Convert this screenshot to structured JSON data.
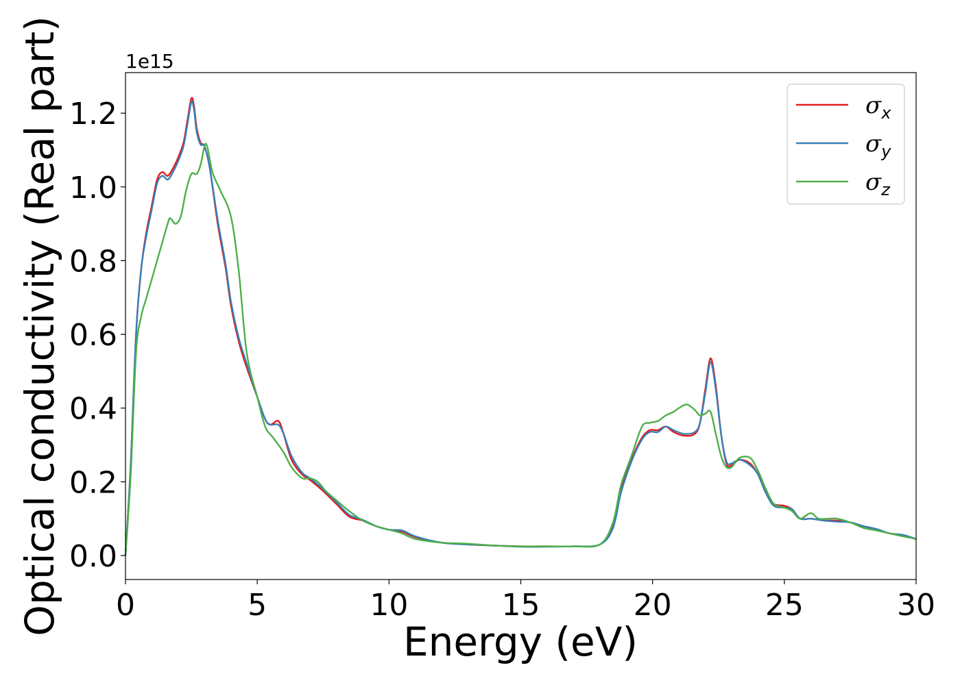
{
  "chart_data": {
    "type": "line",
    "xlabel": "Energy (eV)",
    "ylabel": "Optical conductivity (Real part)",
    "y_offset_label": "1e15",
    "xlim": [
      0,
      30
    ],
    "ylim": [
      -0.065,
      1.31
    ],
    "x_ticks": [
      0,
      5,
      10,
      15,
      20,
      25,
      30
    ],
    "x_tick_labels": [
      "0",
      "5",
      "10",
      "15",
      "20",
      "25",
      "30"
    ],
    "y_ticks": [
      0.0,
      0.2,
      0.4,
      0.6,
      0.8,
      1.0,
      1.2
    ],
    "y_tick_labels": [
      "0.0",
      "0.2",
      "0.4",
      "0.6",
      "0.8",
      "1.0",
      "1.2"
    ],
    "grid": false,
    "legend_position": "top-right",
    "series": [
      {
        "name": "σx",
        "legend_symbol": "σ",
        "legend_subscript": "x",
        "color": "#e41a1c",
        "points": [
          [
            0,
            0
          ],
          [
            0.2,
            0.25
          ],
          [
            0.4,
            0.6
          ],
          [
            0.6,
            0.78
          ],
          [
            0.8,
            0.88
          ],
          [
            1.0,
            0.95
          ],
          [
            1.2,
            1.02
          ],
          [
            1.4,
            1.04
          ],
          [
            1.6,
            1.03
          ],
          [
            1.8,
            1.05
          ],
          [
            2.0,
            1.08
          ],
          [
            2.2,
            1.12
          ],
          [
            2.35,
            1.18
          ],
          [
            2.5,
            1.24
          ],
          [
            2.6,
            1.22
          ],
          [
            2.7,
            1.16
          ],
          [
            2.85,
            1.12
          ],
          [
            3.0,
            1.11
          ],
          [
            3.2,
            1.05
          ],
          [
            3.5,
            0.9
          ],
          [
            3.8,
            0.78
          ],
          [
            4.0,
            0.68
          ],
          [
            4.3,
            0.58
          ],
          [
            4.6,
            0.51
          ],
          [
            5.0,
            0.43
          ],
          [
            5.3,
            0.37
          ],
          [
            5.5,
            0.355
          ],
          [
            5.8,
            0.365
          ],
          [
            6.0,
            0.33
          ],
          [
            6.3,
            0.26
          ],
          [
            6.7,
            0.22
          ],
          [
            7.0,
            0.205
          ],
          [
            7.5,
            0.175
          ],
          [
            8.0,
            0.14
          ],
          [
            8.5,
            0.105
          ],
          [
            9.0,
            0.095
          ],
          [
            9.5,
            0.08
          ],
          [
            10.0,
            0.07
          ],
          [
            10.5,
            0.065
          ],
          [
            11.0,
            0.05
          ],
          [
            12.0,
            0.035
          ],
          [
            13.0,
            0.03
          ],
          [
            14.0,
            0.027
          ],
          [
            15.0,
            0.025
          ],
          [
            16.0,
            0.025
          ],
          [
            17.0,
            0.025
          ],
          [
            18.0,
            0.03
          ],
          [
            18.5,
            0.08
          ],
          [
            18.8,
            0.18
          ],
          [
            19.2,
            0.26
          ],
          [
            19.6,
            0.32
          ],
          [
            19.9,
            0.34
          ],
          [
            20.2,
            0.34
          ],
          [
            20.5,
            0.35
          ],
          [
            20.8,
            0.335
          ],
          [
            21.2,
            0.325
          ],
          [
            21.6,
            0.33
          ],
          [
            21.8,
            0.36
          ],
          [
            22.0,
            0.45
          ],
          [
            22.2,
            0.535
          ],
          [
            22.4,
            0.46
          ],
          [
            22.6,
            0.33
          ],
          [
            22.8,
            0.25
          ],
          [
            23.0,
            0.245
          ],
          [
            23.3,
            0.26
          ],
          [
            23.7,
            0.25
          ],
          [
            24.0,
            0.22
          ],
          [
            24.3,
            0.17
          ],
          [
            24.6,
            0.14
          ],
          [
            25.0,
            0.135
          ],
          [
            25.3,
            0.125
          ],
          [
            25.6,
            0.1
          ],
          [
            26.0,
            0.1
          ],
          [
            26.5,
            0.095
          ],
          [
            27.0,
            0.095
          ],
          [
            27.5,
            0.09
          ],
          [
            28.0,
            0.08
          ],
          [
            28.5,
            0.07
          ],
          [
            29.0,
            0.06
          ],
          [
            29.5,
            0.055
          ],
          [
            30.0,
            0.045
          ]
        ]
      },
      {
        "name": "σy",
        "legend_symbol": "σ",
        "legend_subscript": "y",
        "color": "#377eb8",
        "points": [
          [
            0,
            0
          ],
          [
            0.2,
            0.25
          ],
          [
            0.4,
            0.6
          ],
          [
            0.6,
            0.78
          ],
          [
            0.8,
            0.87
          ],
          [
            1.0,
            0.94
          ],
          [
            1.2,
            1.01
          ],
          [
            1.4,
            1.03
          ],
          [
            1.6,
            1.02
          ],
          [
            1.8,
            1.04
          ],
          [
            2.0,
            1.07
          ],
          [
            2.2,
            1.11
          ],
          [
            2.35,
            1.17
          ],
          [
            2.5,
            1.23
          ],
          [
            2.6,
            1.21
          ],
          [
            2.7,
            1.15
          ],
          [
            2.85,
            1.115
          ],
          [
            3.0,
            1.11
          ],
          [
            3.2,
            1.05
          ],
          [
            3.5,
            0.91
          ],
          [
            3.8,
            0.79
          ],
          [
            4.0,
            0.69
          ],
          [
            4.3,
            0.59
          ],
          [
            4.6,
            0.52
          ],
          [
            5.0,
            0.43
          ],
          [
            5.3,
            0.37
          ],
          [
            5.5,
            0.355
          ],
          [
            5.8,
            0.355
          ],
          [
            6.0,
            0.33
          ],
          [
            6.3,
            0.27
          ],
          [
            6.7,
            0.225
          ],
          [
            7.0,
            0.21
          ],
          [
            7.5,
            0.18
          ],
          [
            8.0,
            0.145
          ],
          [
            8.5,
            0.11
          ],
          [
            9.0,
            0.097
          ],
          [
            9.5,
            0.08
          ],
          [
            10.0,
            0.07
          ],
          [
            10.5,
            0.068
          ],
          [
            11.0,
            0.052
          ],
          [
            12.0,
            0.035
          ],
          [
            13.0,
            0.03
          ],
          [
            14.0,
            0.027
          ],
          [
            15.0,
            0.024
          ],
          [
            16.0,
            0.024
          ],
          [
            17.0,
            0.025
          ],
          [
            18.0,
            0.03
          ],
          [
            18.5,
            0.075
          ],
          [
            18.8,
            0.17
          ],
          [
            19.2,
            0.255
          ],
          [
            19.6,
            0.315
          ],
          [
            19.9,
            0.335
          ],
          [
            20.2,
            0.335
          ],
          [
            20.5,
            0.35
          ],
          [
            20.8,
            0.34
          ],
          [
            21.2,
            0.33
          ],
          [
            21.6,
            0.335
          ],
          [
            21.8,
            0.36
          ],
          [
            22.0,
            0.44
          ],
          [
            22.2,
            0.525
          ],
          [
            22.4,
            0.45
          ],
          [
            22.6,
            0.33
          ],
          [
            22.8,
            0.255
          ],
          [
            23.0,
            0.25
          ],
          [
            23.3,
            0.26
          ],
          [
            23.7,
            0.245
          ],
          [
            24.0,
            0.22
          ],
          [
            24.3,
            0.17
          ],
          [
            24.6,
            0.135
          ],
          [
            25.0,
            0.13
          ],
          [
            25.3,
            0.125
          ],
          [
            25.6,
            0.1
          ],
          [
            26.0,
            0.1
          ],
          [
            26.5,
            0.095
          ],
          [
            27.0,
            0.092
          ],
          [
            27.5,
            0.09
          ],
          [
            28.0,
            0.08
          ],
          [
            28.5,
            0.072
          ],
          [
            29.0,
            0.06
          ],
          [
            29.5,
            0.056
          ],
          [
            30.0,
            0.045
          ]
        ]
      },
      {
        "name": "σz",
        "legend_symbol": "σ",
        "legend_subscript": "z",
        "color": "#4daf4a",
        "points": [
          [
            0,
            0
          ],
          [
            0.2,
            0.22
          ],
          [
            0.4,
            0.55
          ],
          [
            0.6,
            0.65
          ],
          [
            0.8,
            0.7
          ],
          [
            1.0,
            0.75
          ],
          [
            1.2,
            0.8
          ],
          [
            1.4,
            0.85
          ],
          [
            1.6,
            0.9
          ],
          [
            1.7,
            0.915
          ],
          [
            1.9,
            0.9
          ],
          [
            2.1,
            0.92
          ],
          [
            2.3,
            0.99
          ],
          [
            2.5,
            1.035
          ],
          [
            2.7,
            1.035
          ],
          [
            2.85,
            1.06
          ],
          [
            3.0,
            1.11
          ],
          [
            3.1,
            1.11
          ],
          [
            3.3,
            1.04
          ],
          [
            3.6,
            0.99
          ],
          [
            4.0,
            0.92
          ],
          [
            4.3,
            0.77
          ],
          [
            4.6,
            0.55
          ],
          [
            5.0,
            0.43
          ],
          [
            5.3,
            0.35
          ],
          [
            5.6,
            0.32
          ],
          [
            6.0,
            0.28
          ],
          [
            6.3,
            0.24
          ],
          [
            6.7,
            0.21
          ],
          [
            7.0,
            0.21
          ],
          [
            7.3,
            0.2
          ],
          [
            7.6,
            0.175
          ],
          [
            8.0,
            0.15
          ],
          [
            8.5,
            0.12
          ],
          [
            9.0,
            0.095
          ],
          [
            9.5,
            0.08
          ],
          [
            10.0,
            0.07
          ],
          [
            10.5,
            0.06
          ],
          [
            11.0,
            0.045
          ],
          [
            12.0,
            0.035
          ],
          [
            13.0,
            0.032
          ],
          [
            14.0,
            0.027
          ],
          [
            15.0,
            0.025
          ],
          [
            16.0,
            0.025
          ],
          [
            17.0,
            0.025
          ],
          [
            18.0,
            0.03
          ],
          [
            18.5,
            0.09
          ],
          [
            18.8,
            0.19
          ],
          [
            19.2,
            0.27
          ],
          [
            19.6,
            0.35
          ],
          [
            19.9,
            0.36
          ],
          [
            20.2,
            0.365
          ],
          [
            20.5,
            0.38
          ],
          [
            20.8,
            0.39
          ],
          [
            21.0,
            0.4
          ],
          [
            21.3,
            0.41
          ],
          [
            21.6,
            0.395
          ],
          [
            21.8,
            0.38
          ],
          [
            22.0,
            0.385
          ],
          [
            22.2,
            0.39
          ],
          [
            22.4,
            0.33
          ],
          [
            22.6,
            0.27
          ],
          [
            22.8,
            0.24
          ],
          [
            23.0,
            0.24
          ],
          [
            23.3,
            0.265
          ],
          [
            23.7,
            0.265
          ],
          [
            24.0,
            0.23
          ],
          [
            24.3,
            0.18
          ],
          [
            24.6,
            0.14
          ],
          [
            25.0,
            0.13
          ],
          [
            25.3,
            0.12
          ],
          [
            25.6,
            0.1
          ],
          [
            26.0,
            0.115
          ],
          [
            26.3,
            0.1
          ],
          [
            26.7,
            0.1
          ],
          [
            27.0,
            0.1
          ],
          [
            27.5,
            0.09
          ],
          [
            28.0,
            0.075
          ],
          [
            28.5,
            0.068
          ],
          [
            29.0,
            0.06
          ],
          [
            29.5,
            0.052
          ],
          [
            30.0,
            0.045
          ]
        ]
      }
    ]
  }
}
